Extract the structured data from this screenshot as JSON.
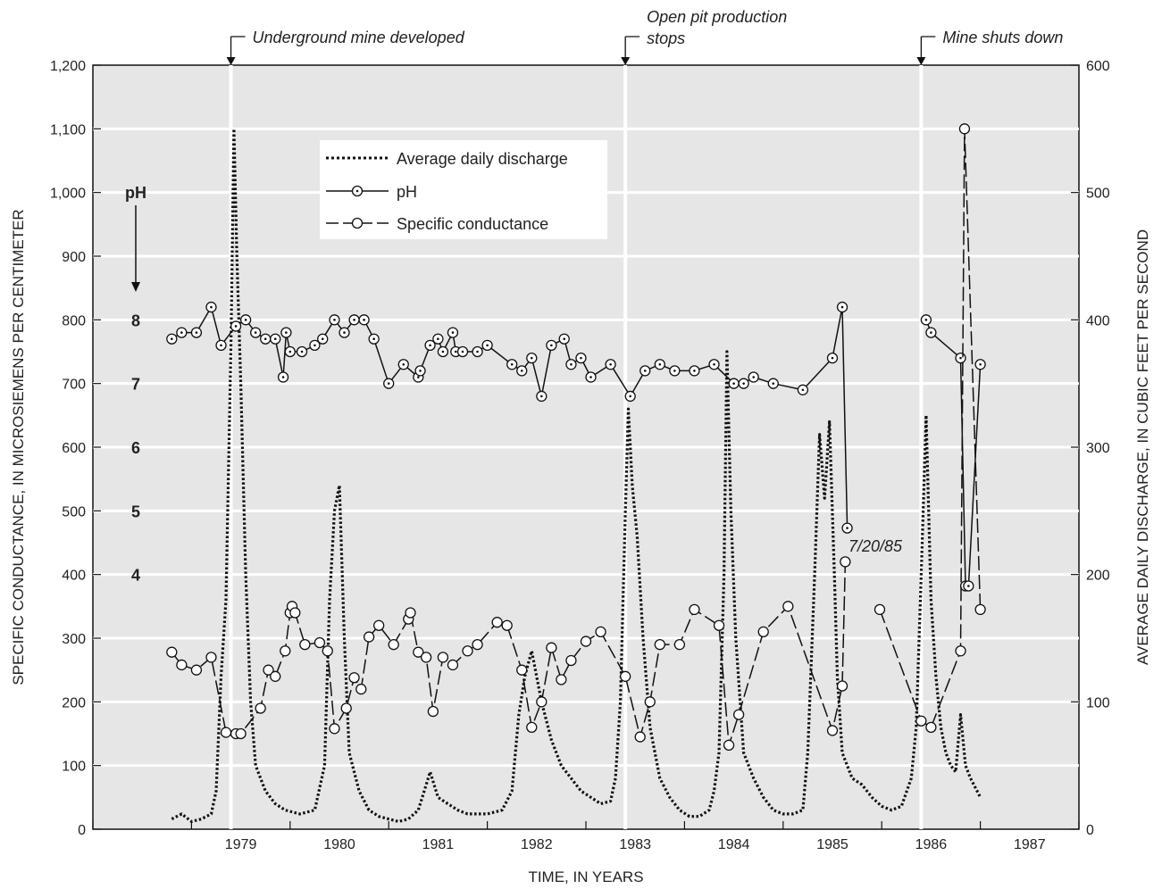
{
  "chart_data": {
    "type": "line",
    "xlabel": "TIME, IN YEARS",
    "ylabel_left": "SPECIFIC CONDUCTANCE, IN MICROSIEMENS PER CENTIMETER",
    "ylabel_right": "AVERAGE DAILY DISCHARGE, IN CUBIC FEET PER SECOND",
    "xlim": [
      1978.0,
      1988.0
    ],
    "ylim_left": [
      0,
      1200
    ],
    "ylim_right": [
      0,
      600
    ],
    "x_ticks": [
      1979,
      1980,
      1981,
      1982,
      1983,
      1984,
      1985,
      1986,
      1987
    ],
    "x_tick_labels": [
      "1979",
      "1980",
      "1981",
      "1982",
      "1983",
      "1984",
      "1985",
      "1986",
      "1987"
    ],
    "y_left_ticks": [
      0,
      100,
      200,
      300,
      400,
      500,
      600,
      700,
      800,
      900,
      1000,
      1100,
      1200
    ],
    "y_left_tick_labels": [
      "0",
      "100",
      "200",
      "300",
      "400",
      "500",
      "600",
      "700",
      "800",
      "900",
      "1,000",
      "1,100",
      "1,200"
    ],
    "y_right_ticks": [
      0,
      100,
      200,
      300,
      400,
      500,
      600
    ],
    "y_right_tick_labels": [
      "0",
      "100",
      "200",
      "300",
      "400",
      "500",
      "600"
    ],
    "ph_axis": {
      "title": "pH",
      "ticks": [
        {
          "label": "8",
          "value": 800
        },
        {
          "label": "7",
          "value": 700
        },
        {
          "label": "6",
          "value": 600
        },
        {
          "label": "5",
          "value": 500
        },
        {
          "label": "4",
          "value": 400
        }
      ]
    },
    "grid": true,
    "legend": {
      "position": "top-center",
      "entries": [
        "Average daily discharge",
        "pH",
        "Specific conductance"
      ]
    },
    "events": [
      {
        "x": 1979.4,
        "label": "Underground mine developed"
      },
      {
        "x": 1983.4,
        "label": "Open pit production stops"
      },
      {
        "x": 1986.4,
        "label": "Mine shuts down"
      }
    ],
    "annotations": [
      {
        "text": "7/20/85",
        "x": 1985.65,
        "y": 445
      }
    ],
    "series": [
      {
        "name": "pH",
        "axis": "left",
        "segments": [
          [
            [
              1978.8,
              770
            ],
            [
              1978.9,
              780
            ],
            [
              1979.05,
              780
            ],
            [
              1979.2,
              820
            ],
            [
              1979.3,
              760
            ],
            [
              1979.45,
              790
            ],
            [
              1979.55,
              800
            ],
            [
              1979.65,
              780
            ],
            [
              1979.75,
              770
            ],
            [
              1979.85,
              770
            ],
            [
              1979.93,
              710
            ],
            [
              1979.96,
              780
            ],
            [
              1980.0,
              750
            ],
            [
              1980.12,
              750
            ],
            [
              1980.25,
              760
            ],
            [
              1980.33,
              770
            ],
            [
              1980.45,
              800
            ],
            [
              1980.55,
              780
            ],
            [
              1980.65,
              800
            ],
            [
              1980.75,
              800
            ],
            [
              1980.85,
              770
            ],
            [
              1981.0,
              700
            ],
            [
              1981.15,
              730
            ],
            [
              1981.3,
              710
            ],
            [
              1981.32,
              720
            ],
            [
              1981.42,
              760
            ],
            [
              1981.5,
              770
            ],
            [
              1981.55,
              750
            ],
            [
              1981.65,
              780
            ],
            [
              1981.68,
              750
            ],
            [
              1981.75,
              750
            ],
            [
              1981.9,
              750
            ],
            [
              1982.0,
              760
            ],
            [
              1982.25,
              730
            ],
            [
              1982.35,
              720
            ],
            [
              1982.45,
              740
            ],
            [
              1982.55,
              680
            ],
            [
              1982.65,
              760
            ],
            [
              1982.78,
              770
            ],
            [
              1982.85,
              730
            ],
            [
              1982.95,
              740
            ],
            [
              1983.05,
              710
            ],
            [
              1983.25,
              730
            ],
            [
              1983.45,
              680
            ],
            [
              1983.6,
              720
            ],
            [
              1983.75,
              730
            ],
            [
              1983.9,
              720
            ],
            [
              1984.1,
              720
            ],
            [
              1984.3,
              730
            ],
            [
              1984.5,
              700
            ],
            [
              1984.6,
              700
            ],
            [
              1984.7,
              710
            ],
            [
              1984.9,
              700
            ],
            [
              1985.2,
              690
            ],
            [
              1985.5,
              740
            ],
            [
              1985.6,
              820
            ],
            [
              1985.65,
              473
            ]
          ],
          [
            [
              1986.45,
              800
            ],
            [
              1986.5,
              780
            ],
            [
              1986.8,
              740
            ],
            [
              1986.85,
              382
            ],
            [
              1986.88,
              382
            ],
            [
              1987.0,
              730
            ]
          ]
        ]
      },
      {
        "name": "Specific conductance",
        "axis": "left",
        "segments": [
          [
            [
              1978.8,
              278
            ],
            [
              1978.9,
              258
            ],
            [
              1979.05,
              250
            ],
            [
              1979.2,
              270
            ],
            [
              1979.35,
              152
            ],
            [
              1979.45,
              150
            ],
            [
              1979.5,
              150
            ],
            [
              1979.7,
              190
            ],
            [
              1979.78,
              250
            ],
            [
              1979.85,
              240
            ],
            [
              1979.95,
              280
            ],
            [
              1980.0,
              340
            ],
            [
              1980.02,
              350
            ],
            [
              1980.05,
              340
            ],
            [
              1980.15,
              290
            ],
            [
              1980.3,
              293
            ],
            [
              1980.38,
              280
            ],
            [
              1980.45,
              158
            ],
            [
              1980.57,
              190
            ],
            [
              1980.65,
              238
            ],
            [
              1980.72,
              220
            ],
            [
              1980.8,
              302
            ],
            [
              1980.9,
              320
            ],
            [
              1981.05,
              290
            ],
            [
              1981.2,
              330
            ],
            [
              1981.22,
              340
            ],
            [
              1981.3,
              278
            ],
            [
              1981.38,
              270
            ],
            [
              1981.45,
              185
            ],
            [
              1981.55,
              270
            ],
            [
              1981.65,
              258
            ],
            [
              1981.8,
              280
            ],
            [
              1981.9,
              290
            ],
            [
              1982.1,
              325
            ],
            [
              1982.2,
              320
            ],
            [
              1982.35,
              250
            ],
            [
              1982.45,
              160
            ],
            [
              1982.55,
              200
            ],
            [
              1982.65,
              285
            ],
            [
              1982.75,
              235
            ],
            [
              1982.85,
              265
            ],
            [
              1983.0,
              295
            ],
            [
              1983.15,
              310
            ],
            [
              1983.4,
              240
            ],
            [
              1983.55,
              145
            ],
            [
              1983.65,
              200
            ],
            [
              1983.75,
              290
            ],
            [
              1983.95,
              290
            ],
            [
              1984.1,
              345
            ],
            [
              1984.35,
              320
            ],
            [
              1984.45,
              132
            ],
            [
              1984.55,
              180
            ],
            [
              1984.8,
              310
            ],
            [
              1985.05,
              350
            ],
            [
              1985.5,
              155
            ],
            [
              1985.6,
              225
            ],
            [
              1985.63,
              420
            ]
          ],
          [
            [
              1985.98,
              345
            ],
            [
              1986.4,
              170
            ],
            [
              1986.5,
              160
            ],
            [
              1986.8,
              280
            ],
            [
              1986.84,
              1100
            ],
            [
              1987.0,
              345
            ]
          ]
        ]
      },
      {
        "name": "Average daily discharge",
        "axis": "right",
        "points": [
          [
            1978.8,
            8
          ],
          [
            1978.9,
            12
          ],
          [
            1979.0,
            6
          ],
          [
            1979.1,
            8
          ],
          [
            1979.2,
            12
          ],
          [
            1979.25,
            30
          ],
          [
            1979.3,
            120
          ],
          [
            1979.35,
            180
          ],
          [
            1979.4,
            380
          ],
          [
            1979.43,
            550
          ],
          [
            1979.46,
            450
          ],
          [
            1979.5,
            350
          ],
          [
            1979.55,
            200
          ],
          [
            1979.6,
            100
          ],
          [
            1979.65,
            50
          ],
          [
            1979.75,
            30
          ],
          [
            1979.85,
            20
          ],
          [
            1979.95,
            15
          ],
          [
            1980.1,
            12
          ],
          [
            1980.25,
            15
          ],
          [
            1980.35,
            50
          ],
          [
            1980.4,
            180
          ],
          [
            1980.45,
            250
          ],
          [
            1980.5,
            270
          ],
          [
            1980.55,
            150
          ],
          [
            1980.6,
            60
          ],
          [
            1980.7,
            30
          ],
          [
            1980.8,
            15
          ],
          [
            1980.9,
            10
          ],
          [
            1981.0,
            8
          ],
          [
            1981.1,
            6
          ],
          [
            1981.2,
            8
          ],
          [
            1981.3,
            15
          ],
          [
            1981.38,
            35
          ],
          [
            1981.42,
            45
          ],
          [
            1981.5,
            25
          ],
          [
            1981.6,
            20
          ],
          [
            1981.7,
            15
          ],
          [
            1981.8,
            12
          ],
          [
            1981.9,
            12
          ],
          [
            1982.0,
            12
          ],
          [
            1982.15,
            15
          ],
          [
            1982.25,
            30
          ],
          [
            1982.32,
            90
          ],
          [
            1982.38,
            120
          ],
          [
            1982.45,
            140
          ],
          [
            1982.55,
            100
          ],
          [
            1982.65,
            70
          ],
          [
            1982.75,
            50
          ],
          [
            1982.85,
            40
          ],
          [
            1982.95,
            30
          ],
          [
            1983.05,
            25
          ],
          [
            1983.15,
            20
          ],
          [
            1983.25,
            22
          ],
          [
            1983.3,
            40
          ],
          [
            1983.35,
            100
          ],
          [
            1983.4,
            250
          ],
          [
            1983.43,
            330
          ],
          [
            1983.47,
            270
          ],
          [
            1983.52,
            230
          ],
          [
            1983.58,
            150
          ],
          [
            1983.65,
            80
          ],
          [
            1983.75,
            40
          ],
          [
            1983.85,
            25
          ],
          [
            1983.95,
            15
          ],
          [
            1984.05,
            10
          ],
          [
            1984.15,
            10
          ],
          [
            1984.25,
            15
          ],
          [
            1984.3,
            30
          ],
          [
            1984.35,
            60
          ],
          [
            1984.4,
            200
          ],
          [
            1984.43,
            375
          ],
          [
            1984.47,
            250
          ],
          [
            1984.52,
            150
          ],
          [
            1984.6,
            60
          ],
          [
            1984.7,
            40
          ],
          [
            1984.8,
            25
          ],
          [
            1984.9,
            15
          ],
          [
            1985.0,
            12
          ],
          [
            1985.1,
            12
          ],
          [
            1985.2,
            15
          ],
          [
            1985.25,
            60
          ],
          [
            1985.32,
            200
          ],
          [
            1985.37,
            310
          ],
          [
            1985.42,
            260
          ],
          [
            1985.47,
            320
          ],
          [
            1985.52,
            200
          ],
          [
            1985.55,
            120
          ],
          [
            1985.6,
            60
          ],
          [
            1985.7,
            40
          ],
          [
            1985.8,
            35
          ],
          [
            1985.9,
            25
          ],
          [
            1986.0,
            18
          ],
          [
            1986.1,
            15
          ],
          [
            1986.2,
            18
          ],
          [
            1986.3,
            40
          ],
          [
            1986.35,
            80
          ],
          [
            1986.4,
            200
          ],
          [
            1986.45,
            325
          ],
          [
            1986.5,
            180
          ],
          [
            1986.55,
            120
          ],
          [
            1986.6,
            80
          ],
          [
            1986.65,
            60
          ],
          [
            1986.7,
            50
          ],
          [
            1986.75,
            45
          ],
          [
            1986.8,
            90
          ],
          [
            1986.85,
            50
          ],
          [
            1986.9,
            40
          ],
          [
            1987.0,
            25
          ]
        ]
      }
    ]
  }
}
